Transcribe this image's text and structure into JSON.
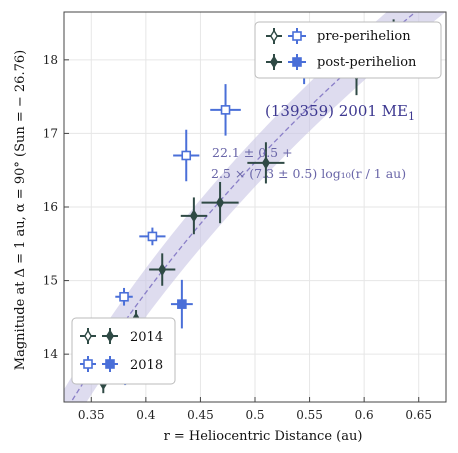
{
  "chart_data": {
    "type": "scatter",
    "xlabel": "r = Heliocentric Distance (au)",
    "ylabel": "Magnitude at Δ = 1 au, α = 90° (Sun = − 26.76)",
    "xlim": [
      0.325,
      0.675
    ],
    "ylim": [
      18.65,
      13.35
    ],
    "y_inverted": true,
    "x_ticks": [
      "0.35",
      "0.4",
      "0.45",
      "0.5",
      "0.55",
      "0.6",
      "0.65"
    ],
    "y_ticks": [
      "14",
      "15",
      "16",
      "17",
      "18"
    ],
    "grid": true,
    "annotation": {
      "object_name": "(139359) 2001 ME",
      "object_subscript": "1",
      "fit_line1": "22.1 ± 0.5 +",
      "fit_line2": "2.5 × (7.3 ± 0.5) log₁₀(r / 1 au)"
    },
    "fit": {
      "intercept": 22.1,
      "slope": 18.25,
      "band": 0.33,
      "color": "#8a7fc8",
      "band_color": "#c8c4e4"
    },
    "legend_phase": {
      "placement": "top-right",
      "entries": [
        "pre-perihelion",
        "post-perihelion"
      ]
    },
    "legend_year": {
      "placement": "bottom-left",
      "entries": [
        "2014",
        "2018"
      ]
    },
    "colors": {
      "y2014": "#2f4a45",
      "y2018": "#4a6fd8"
    },
    "series": [
      {
        "name": "2014",
        "marker": "diamond",
        "points": [
          {
            "x": 0.361,
            "y": 13.6,
            "xerr": 0.003,
            "yerr": 0.13,
            "phase": "post"
          },
          {
            "x": 0.358,
            "y": 13.78,
            "xerr": 0.004,
            "yerr": 0.15,
            "phase": "pre"
          },
          {
            "x": 0.372,
            "y": 14.25,
            "xerr": 0.008,
            "yerr": 0.15,
            "phase": "pre"
          },
          {
            "x": 0.372,
            "y": 14.37,
            "xerr": 0.009,
            "yerr": 0.12,
            "phase": "post"
          },
          {
            "x": 0.391,
            "y": 14.48,
            "xerr": 0.011,
            "yerr": 0.12,
            "phase": "post"
          },
          {
            "x": 0.415,
            "y": 15.15,
            "xerr": 0.012,
            "yerr": 0.22,
            "phase": "post"
          },
          {
            "x": 0.444,
            "y": 15.88,
            "xerr": 0.012,
            "yerr": 0.25,
            "phase": "post"
          },
          {
            "x": 0.468,
            "y": 16.06,
            "xerr": 0.017,
            "yerr": 0.28,
            "phase": "post"
          },
          {
            "x": 0.51,
            "y": 16.6,
            "xerr": 0.017,
            "yerr": 0.28,
            "phase": "post"
          },
          {
            "x": 0.593,
            "y": 17.8,
            "xerr": 0.015,
            "yerr": 0.28,
            "phase": "post"
          },
          {
            "x": 0.627,
            "y": 18.27,
            "xerr": 0.015,
            "yerr": 0.28,
            "phase": "post"
          },
          {
            "x": 0.658,
            "y": 18.15,
            "xerr": 0.006,
            "yerr": 0.28,
            "phase": "post"
          }
        ]
      },
      {
        "name": "2018",
        "marker": "square",
        "points": [
          {
            "x": 0.344,
            "y": 13.72,
            "xerr": 0.004,
            "yerr": 0.1,
            "phase": "pre"
          },
          {
            "x": 0.348,
            "y": 13.82,
            "xerr": 0.005,
            "yerr": 0.1,
            "phase": "pre"
          },
          {
            "x": 0.358,
            "y": 14.1,
            "xerr": 0.005,
            "yerr": 0.15,
            "phase": "pre"
          },
          {
            "x": 0.361,
            "y": 14.3,
            "xerr": 0.005,
            "yerr": 0.12,
            "phase": "pre"
          },
          {
            "x": 0.381,
            "y": 13.83,
            "xerr": 0.01,
            "yerr": 0.25,
            "phase": "post"
          },
          {
            "x": 0.38,
            "y": 14.78,
            "xerr": 0.008,
            "yerr": 0.12,
            "phase": "pre"
          },
          {
            "x": 0.407,
            "y": 14.12,
            "xerr": 0.013,
            "yerr": 0.25,
            "phase": "post"
          },
          {
            "x": 0.433,
            "y": 14.68,
            "xerr": 0.01,
            "yerr": 0.33,
            "phase": "post"
          },
          {
            "x": 0.406,
            "y": 15.6,
            "xerr": 0.012,
            "yerr": 0.12,
            "phase": "pre"
          },
          {
            "x": 0.437,
            "y": 16.7,
            "xerr": 0.012,
            "yerr": 0.35,
            "phase": "pre"
          },
          {
            "x": 0.473,
            "y": 17.32,
            "xerr": 0.014,
            "yerr": 0.35,
            "phase": "pre"
          },
          {
            "x": 0.545,
            "y": 18.02,
            "xerr": 0.011,
            "yerr": 0.35,
            "phase": "pre"
          }
        ]
      }
    ]
  }
}
